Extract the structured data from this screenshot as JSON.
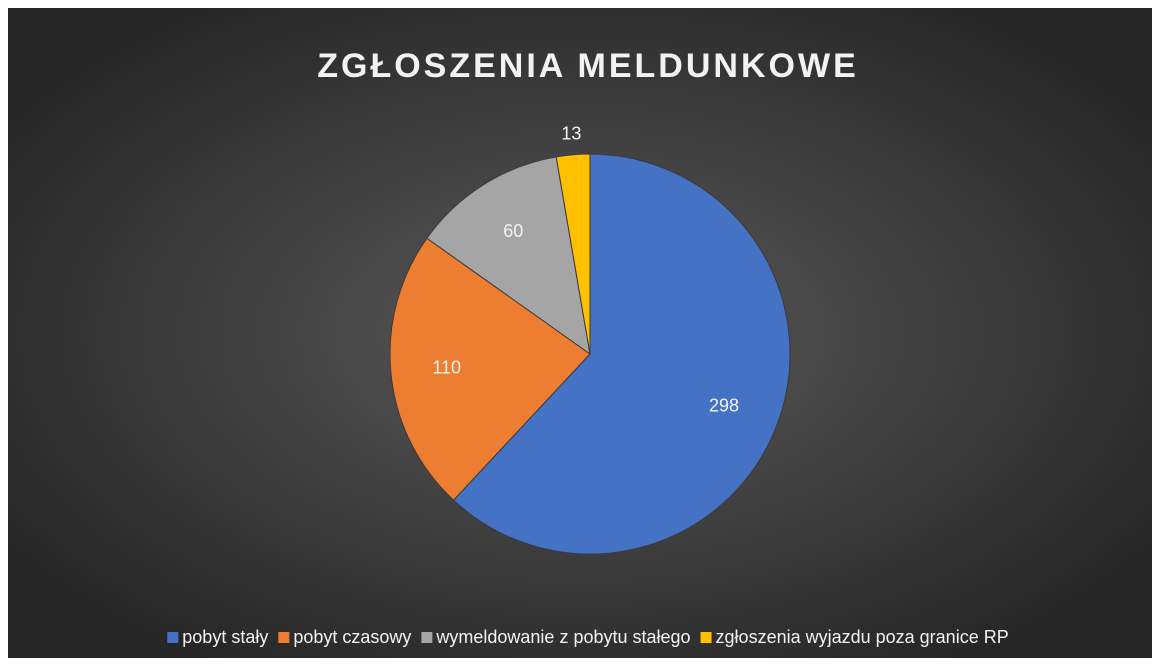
{
  "chart_data": {
    "type": "pie",
    "title": "ZGŁOSZENIA MELDUNKOWE",
    "categories": [
      "pobyt stały",
      "pobyt czasowy",
      "wymeldowanie z pobytu stałego",
      "zgłoszenia wyjazdu poza granice RP"
    ],
    "values": [
      298,
      110,
      60,
      13
    ],
    "colors": [
      "#4472c4",
      "#ed7d31",
      "#a5a5a5",
      "#ffc000"
    ],
    "legend": "bottom"
  }
}
